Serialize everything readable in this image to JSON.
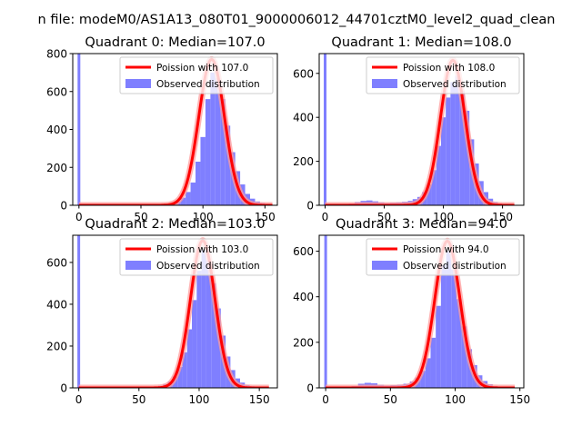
{
  "figure": {
    "suptitle": "n file: modeM0/AS1A13_080T01_9000006012_44701cztM0_level2_quad_clean"
  },
  "colors": {
    "hist": "#7f7fff",
    "curve": "#ff0000",
    "curve_halo": "#ff9a9a",
    "axis": "#000000"
  },
  "chart_data": [
    {
      "type": "bar",
      "title": "Quadrant 0: Median=107.0",
      "legend": {
        "placement": "top-right",
        "curve_label": "Poission with 107.0",
        "hist_label": "Observed distribution"
      },
      "xlim": [
        -5,
        160
      ],
      "ylim": [
        0,
        800
      ],
      "xticks": [
        0,
        50,
        100,
        150
      ],
      "yticks": [
        0,
        200,
        400,
        600,
        800
      ],
      "spike": {
        "x": 0,
        "width": 3
      },
      "curve": {
        "lambda": 107.0,
        "peak": 770,
        "x_from": 0,
        "x_to": 156
      },
      "bins": [
        {
          "x0": 70,
          "x1": 74,
          "y": 8
        },
        {
          "x0": 74,
          "x1": 78,
          "y": 14
        },
        {
          "x0": 78,
          "x1": 82,
          "y": 22
        },
        {
          "x0": 82,
          "x1": 86,
          "y": 40
        },
        {
          "x0": 86,
          "x1": 90,
          "y": 70
        },
        {
          "x0": 90,
          "x1": 94,
          "y": 120
        },
        {
          "x0": 94,
          "x1": 98,
          "y": 230
        },
        {
          "x0": 98,
          "x1": 102,
          "y": 360
        },
        {
          "x0": 102,
          "x1": 106,
          "y": 560
        },
        {
          "x0": 106,
          "x1": 110,
          "y": 700
        },
        {
          "x0": 110,
          "x1": 114,
          "y": 670
        },
        {
          "x0": 114,
          "x1": 118,
          "y": 560
        },
        {
          "x0": 118,
          "x1": 122,
          "y": 420
        },
        {
          "x0": 122,
          "x1": 126,
          "y": 280
        },
        {
          "x0": 126,
          "x1": 130,
          "y": 180
        },
        {
          "x0": 130,
          "x1": 134,
          "y": 110
        },
        {
          "x0": 134,
          "x1": 138,
          "y": 60
        },
        {
          "x0": 138,
          "x1": 142,
          "y": 35
        },
        {
          "x0": 142,
          "x1": 146,
          "y": 20
        },
        {
          "x0": 146,
          "x1": 150,
          "y": 12
        },
        {
          "x0": 150,
          "x1": 155,
          "y": 6
        }
      ]
    },
    {
      "type": "bar",
      "title": "Quadrant 1: Median=108.0",
      "legend": {
        "placement": "top-right",
        "curve_label": "Poission with 108.0",
        "hist_label": "Observed distribution"
      },
      "xlim": [
        -5,
        168
      ],
      "ylim": [
        0,
        690
      ],
      "xticks": [
        0,
        50,
        100,
        150
      ],
      "yticks": [
        0,
        200,
        400,
        600
      ],
      "spike": {
        "x": 0,
        "width": 3
      },
      "curve": {
        "lambda": 108.0,
        "peak": 660,
        "x_from": 0,
        "x_to": 160
      },
      "bins": [
        {
          "x0": 20,
          "x1": 25,
          "y": 8
        },
        {
          "x0": 25,
          "x1": 30,
          "y": 15
        },
        {
          "x0": 30,
          "x1": 35,
          "y": 20
        },
        {
          "x0": 35,
          "x1": 40,
          "y": 22
        },
        {
          "x0": 40,
          "x1": 45,
          "y": 18
        },
        {
          "x0": 45,
          "x1": 50,
          "y": 14
        },
        {
          "x0": 50,
          "x1": 55,
          "y": 10
        },
        {
          "x0": 55,
          "x1": 60,
          "y": 12
        },
        {
          "x0": 60,
          "x1": 65,
          "y": 14
        },
        {
          "x0": 65,
          "x1": 70,
          "y": 16
        },
        {
          "x0": 70,
          "x1": 74,
          "y": 20
        },
        {
          "x0": 74,
          "x1": 78,
          "y": 28
        },
        {
          "x0": 78,
          "x1": 82,
          "y": 38
        },
        {
          "x0": 82,
          "x1": 86,
          "y": 60
        },
        {
          "x0": 86,
          "x1": 90,
          "y": 95
        },
        {
          "x0": 90,
          "x1": 94,
          "y": 160
        },
        {
          "x0": 94,
          "x1": 98,
          "y": 270
        },
        {
          "x0": 98,
          "x1": 102,
          "y": 400
        },
        {
          "x0": 102,
          "x1": 106,
          "y": 490
        },
        {
          "x0": 106,
          "x1": 110,
          "y": 560
        },
        {
          "x0": 110,
          "x1": 114,
          "y": 590
        },
        {
          "x0": 114,
          "x1": 118,
          "y": 520
        },
        {
          "x0": 118,
          "x1": 122,
          "y": 430
        },
        {
          "x0": 122,
          "x1": 126,
          "y": 300
        },
        {
          "x0": 126,
          "x1": 130,
          "y": 190
        },
        {
          "x0": 130,
          "x1": 134,
          "y": 110
        },
        {
          "x0": 134,
          "x1": 138,
          "y": 60
        },
        {
          "x0": 138,
          "x1": 142,
          "y": 30
        },
        {
          "x0": 142,
          "x1": 146,
          "y": 15
        },
        {
          "x0": 146,
          "x1": 150,
          "y": 8
        }
      ]
    },
    {
      "type": "bar",
      "title": "Quadrant 2: Median=103.0",
      "legend": {
        "placement": "top-right",
        "curve_label": "Poission with 103.0",
        "hist_label": "Observed distribution"
      },
      "xlim": [
        -5,
        165
      ],
      "ylim": [
        0,
        730
      ],
      "xticks": [
        0,
        50,
        100,
        150
      ],
      "yticks": [
        0,
        200,
        400,
        600
      ],
      "spike": {
        "x": 0,
        "width": 3
      },
      "curve": {
        "lambda": 103.0,
        "peak": 705,
        "x_from": 0,
        "x_to": 158
      },
      "bins": [
        {
          "x0": 66,
          "x1": 70,
          "y": 10
        },
        {
          "x0": 70,
          "x1": 74,
          "y": 18
        },
        {
          "x0": 74,
          "x1": 78,
          "y": 30
        },
        {
          "x0": 78,
          "x1": 82,
          "y": 55
        },
        {
          "x0": 82,
          "x1": 86,
          "y": 100
        },
        {
          "x0": 86,
          "x1": 90,
          "y": 170
        },
        {
          "x0": 90,
          "x1": 94,
          "y": 280
        },
        {
          "x0": 94,
          "x1": 98,
          "y": 420
        },
        {
          "x0": 98,
          "x1": 102,
          "y": 560
        },
        {
          "x0": 102,
          "x1": 106,
          "y": 660
        },
        {
          "x0": 106,
          "x1": 110,
          "y": 610
        },
        {
          "x0": 110,
          "x1": 114,
          "y": 500
        },
        {
          "x0": 114,
          "x1": 118,
          "y": 380
        },
        {
          "x0": 118,
          "x1": 122,
          "y": 250
        },
        {
          "x0": 122,
          "x1": 126,
          "y": 150
        },
        {
          "x0": 126,
          "x1": 130,
          "y": 85
        },
        {
          "x0": 130,
          "x1": 134,
          "y": 45
        },
        {
          "x0": 134,
          "x1": 138,
          "y": 25
        },
        {
          "x0": 138,
          "x1": 142,
          "y": 14
        },
        {
          "x0": 142,
          "x1": 146,
          "y": 8
        }
      ]
    },
    {
      "type": "bar",
      "title": "Quadrant 3: Median=94.0",
      "legend": {
        "placement": "top-right",
        "curve_label": "Poission with 94.0",
        "hist_label": "Observed distribution"
      },
      "xlim": [
        -5,
        153
      ],
      "ylim": [
        0,
        670
      ],
      "xticks": [
        0,
        50,
        100,
        150
      ],
      "yticks": [
        0,
        200,
        400,
        600
      ],
      "spike": {
        "x": 0,
        "width": 3
      },
      "curve": {
        "lambda": 94.0,
        "peak": 645,
        "x_from": 0,
        "x_to": 146
      },
      "bins": [
        {
          "x0": 20,
          "x1": 25,
          "y": 8
        },
        {
          "x0": 25,
          "x1": 30,
          "y": 18
        },
        {
          "x0": 30,
          "x1": 35,
          "y": 22
        },
        {
          "x0": 35,
          "x1": 40,
          "y": 20
        },
        {
          "x0": 40,
          "x1": 45,
          "y": 14
        },
        {
          "x0": 45,
          "x1": 50,
          "y": 10
        },
        {
          "x0": 50,
          "x1": 55,
          "y": 12
        },
        {
          "x0": 55,
          "x1": 60,
          "y": 14
        },
        {
          "x0": 60,
          "x1": 65,
          "y": 18
        },
        {
          "x0": 65,
          "x1": 69,
          "y": 28
        },
        {
          "x0": 69,
          "x1": 73,
          "y": 45
        },
        {
          "x0": 73,
          "x1": 77,
          "y": 75
        },
        {
          "x0": 77,
          "x1": 81,
          "y": 130
        },
        {
          "x0": 81,
          "x1": 85,
          "y": 220
        },
        {
          "x0": 85,
          "x1": 89,
          "y": 360
        },
        {
          "x0": 89,
          "x1": 93,
          "y": 540
        },
        {
          "x0": 93,
          "x1": 97,
          "y": 600
        },
        {
          "x0": 97,
          "x1": 101,
          "y": 520
        },
        {
          "x0": 101,
          "x1": 105,
          "y": 390
        },
        {
          "x0": 105,
          "x1": 109,
          "y": 270
        },
        {
          "x0": 109,
          "x1": 113,
          "y": 170
        },
        {
          "x0": 113,
          "x1": 117,
          "y": 100
        },
        {
          "x0": 117,
          "x1": 121,
          "y": 55
        },
        {
          "x0": 121,
          "x1": 125,
          "y": 30
        },
        {
          "x0": 125,
          "x1": 129,
          "y": 16
        },
        {
          "x0": 129,
          "x1": 133,
          "y": 8
        }
      ]
    }
  ]
}
